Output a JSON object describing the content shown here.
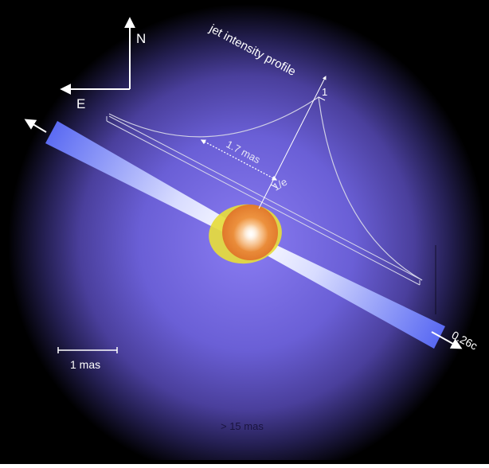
{
  "compass": {
    "north_label": "N",
    "east_label": "E"
  },
  "profile": {
    "title": "jet intensity profile",
    "peak_label": "1",
    "half_label": "1/e",
    "width_label": "1.7 mas"
  },
  "jet": {
    "speed_label": "0.26c"
  },
  "scale": {
    "bar_label": "1 mas",
    "envelope_label": "> 15 mas"
  },
  "colors": {
    "background": "#000000",
    "halo_core": "#8878ee",
    "jet": "#5a6cf0",
    "disk": "#e6dc3c",
    "core": "#ef8a2c",
    "line": "#ffffff"
  }
}
